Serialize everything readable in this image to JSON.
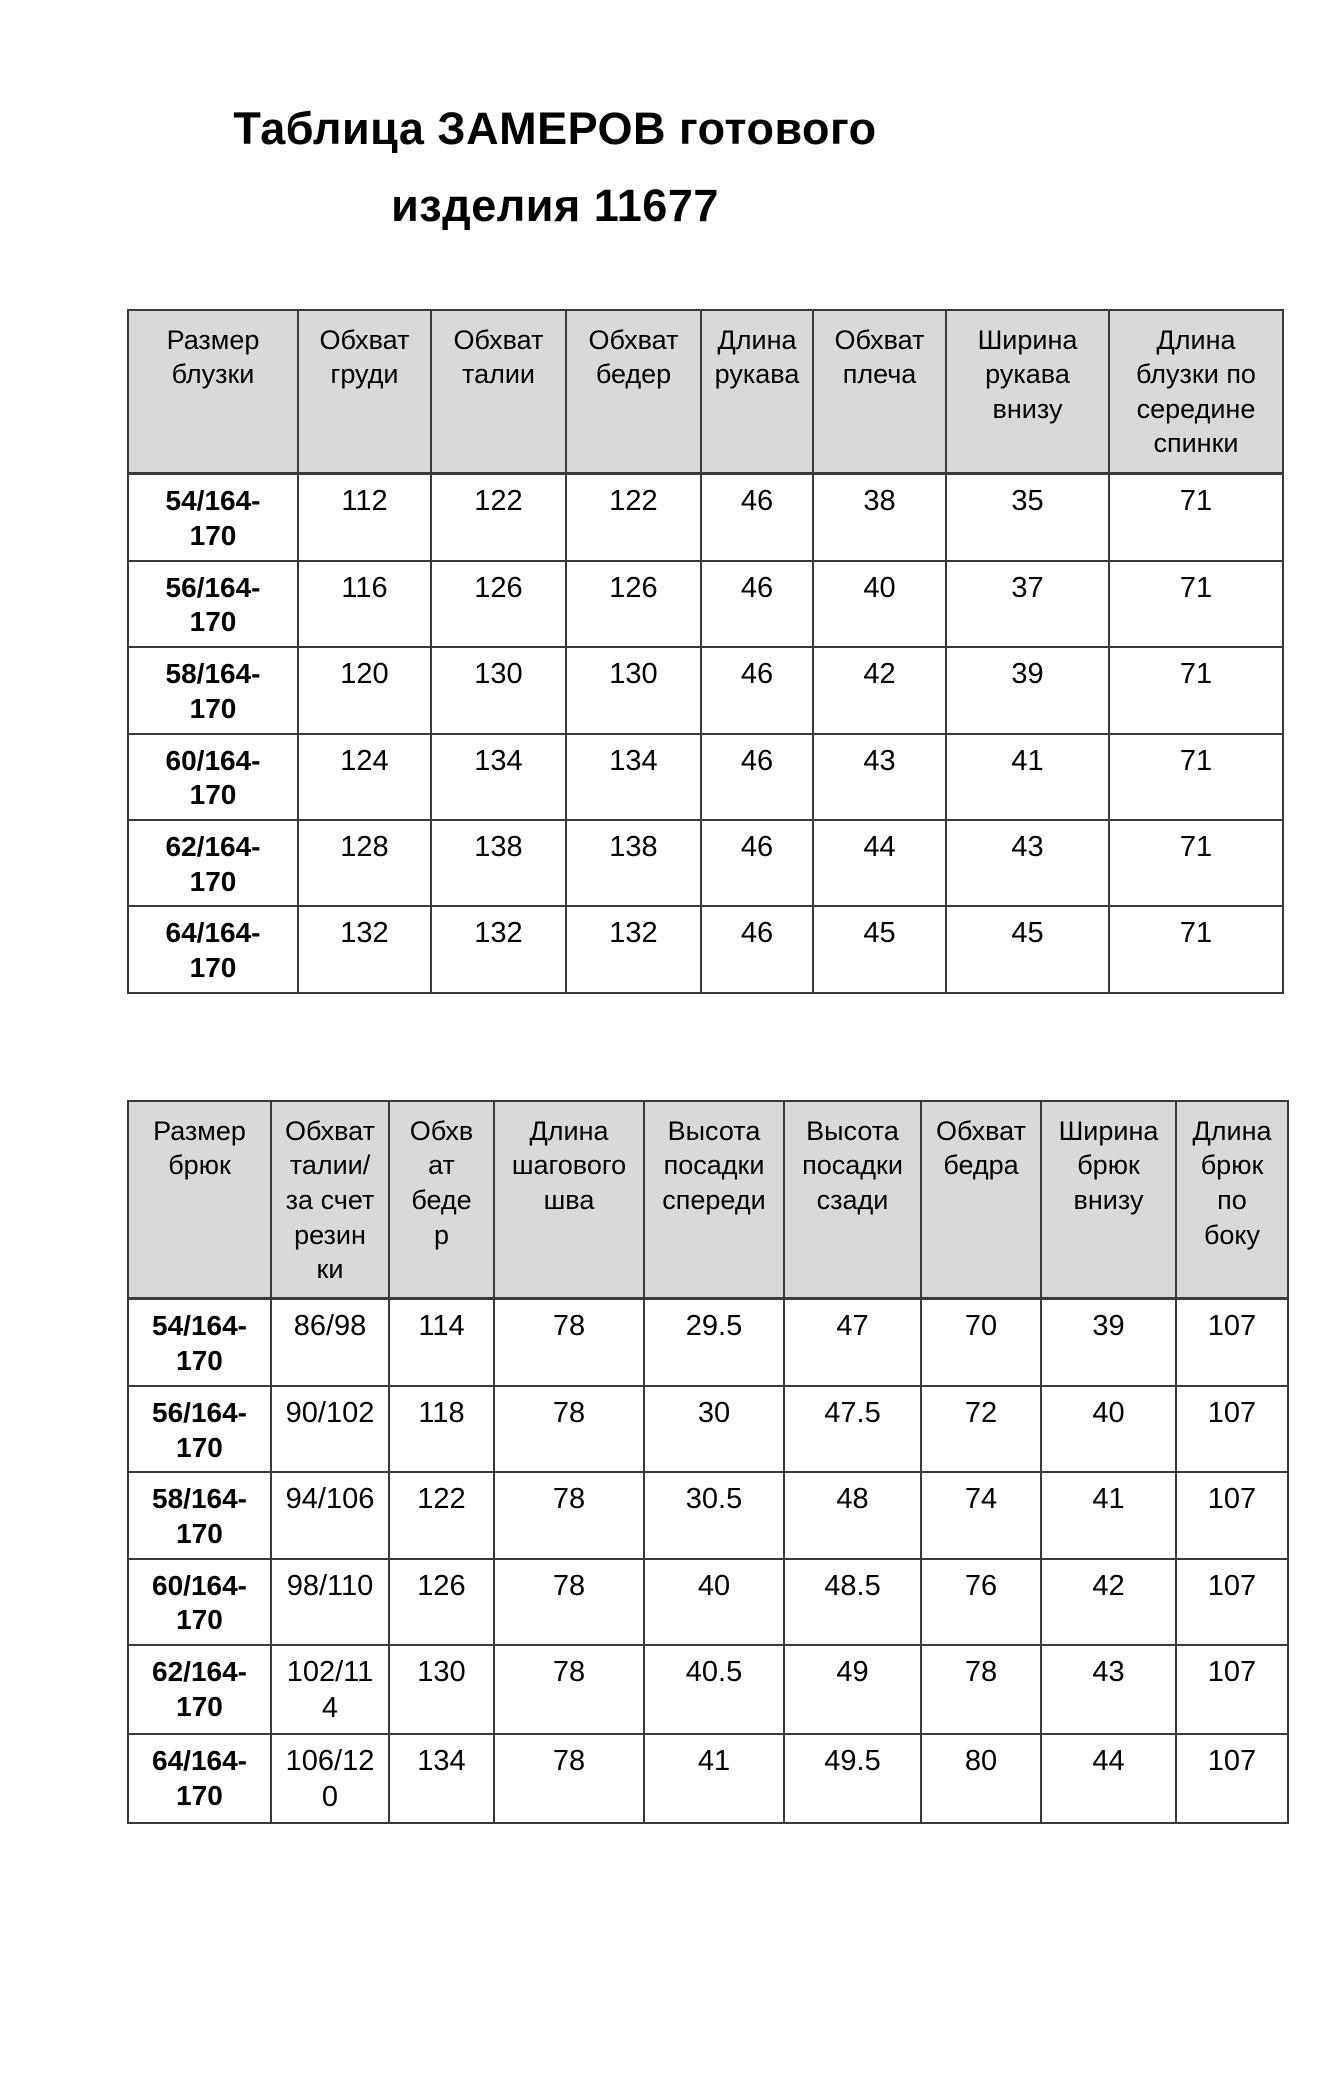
{
  "page": {
    "title_line1": "Таблица ЗАМЕРОВ готового",
    "title_line2": "изделия 11677"
  },
  "colors": {
    "header_bg": "#d9d9d9",
    "border": "#3a3a3a",
    "text": "#000000",
    "page_bg": "#ffffff"
  },
  "tables": [
    {
      "name": "blouse-measurements",
      "headers": [
        "Размер\nблузки",
        "Обхват\nгруди",
        "Обхват\nталии",
        "Обхват\nбедер",
        "Длина\nрукава",
        "Обхват\nплеча",
        "Ширина\nрукава\nвнизу",
        "Длина\nблузки по\nсередине\nспинки"
      ],
      "rows": [
        {
          "size": "54/164-\n170",
          "values": [
            "112",
            "122",
            "122",
            "46",
            "38",
            "35",
            "71"
          ]
        },
        {
          "size": "56/164-\n170",
          "values": [
            "116",
            "126",
            "126",
            "46",
            "40",
            "37",
            "71"
          ]
        },
        {
          "size": "58/164-\n170",
          "values": [
            "120",
            "130",
            "130",
            "46",
            "42",
            "39",
            "71"
          ]
        },
        {
          "size": "60/164-\n170",
          "values": [
            "124",
            "134",
            "134",
            "46",
            "43",
            "41",
            "71"
          ]
        },
        {
          "size": "62/164-\n170",
          "values": [
            "128",
            "138",
            "138",
            "46",
            "44",
            "43",
            "71"
          ]
        },
        {
          "size": "64/164-\n170",
          "values": [
            "132",
            "132",
            "132",
            "46",
            "45",
            "45",
            "71"
          ]
        }
      ]
    },
    {
      "name": "trousers-measurements",
      "headers": [
        "Размер\nбрюк",
        "Обхват\nталии/\nза счет\nрезин\nки",
        "Обхв\nат\nбеде\nр",
        "Длина\nшагового\nшва",
        "Высота\nпосадки\nспереди",
        "Высота\nпосадки\nсзади",
        "Обхват\nбедра",
        "Ширина\nбрюк\nвнизу",
        "Длина\nбрюк\nпо\nбоку"
      ],
      "rows": [
        {
          "size": "54/164-\n170",
          "values": [
            "86/98",
            "114",
            "78",
            "29.5",
            "47",
            "70",
            "39",
            "107"
          ]
        },
        {
          "size": "56/164-\n170",
          "values": [
            "90/102",
            "118",
            "78",
            "30",
            "47.5",
            "72",
            "40",
            "107"
          ]
        },
        {
          "size": "58/164-\n170",
          "values": [
            "94/106",
            "122",
            "78",
            "30.5",
            "48",
            "74",
            "41",
            "107"
          ]
        },
        {
          "size": "60/164-\n170",
          "values": [
            "98/110",
            "126",
            "78",
            "40",
            "48.5",
            "76",
            "42",
            "107"
          ]
        },
        {
          "size": "62/164-\n170",
          "values": [
            "102/11\n4",
            "130",
            "78",
            "40.5",
            "49",
            "78",
            "43",
            "107"
          ]
        },
        {
          "size": "64/164-\n170",
          "values": [
            "106/12\n0",
            "134",
            "78",
            "41",
            "49.5",
            "80",
            "44",
            "107"
          ]
        }
      ]
    }
  ]
}
